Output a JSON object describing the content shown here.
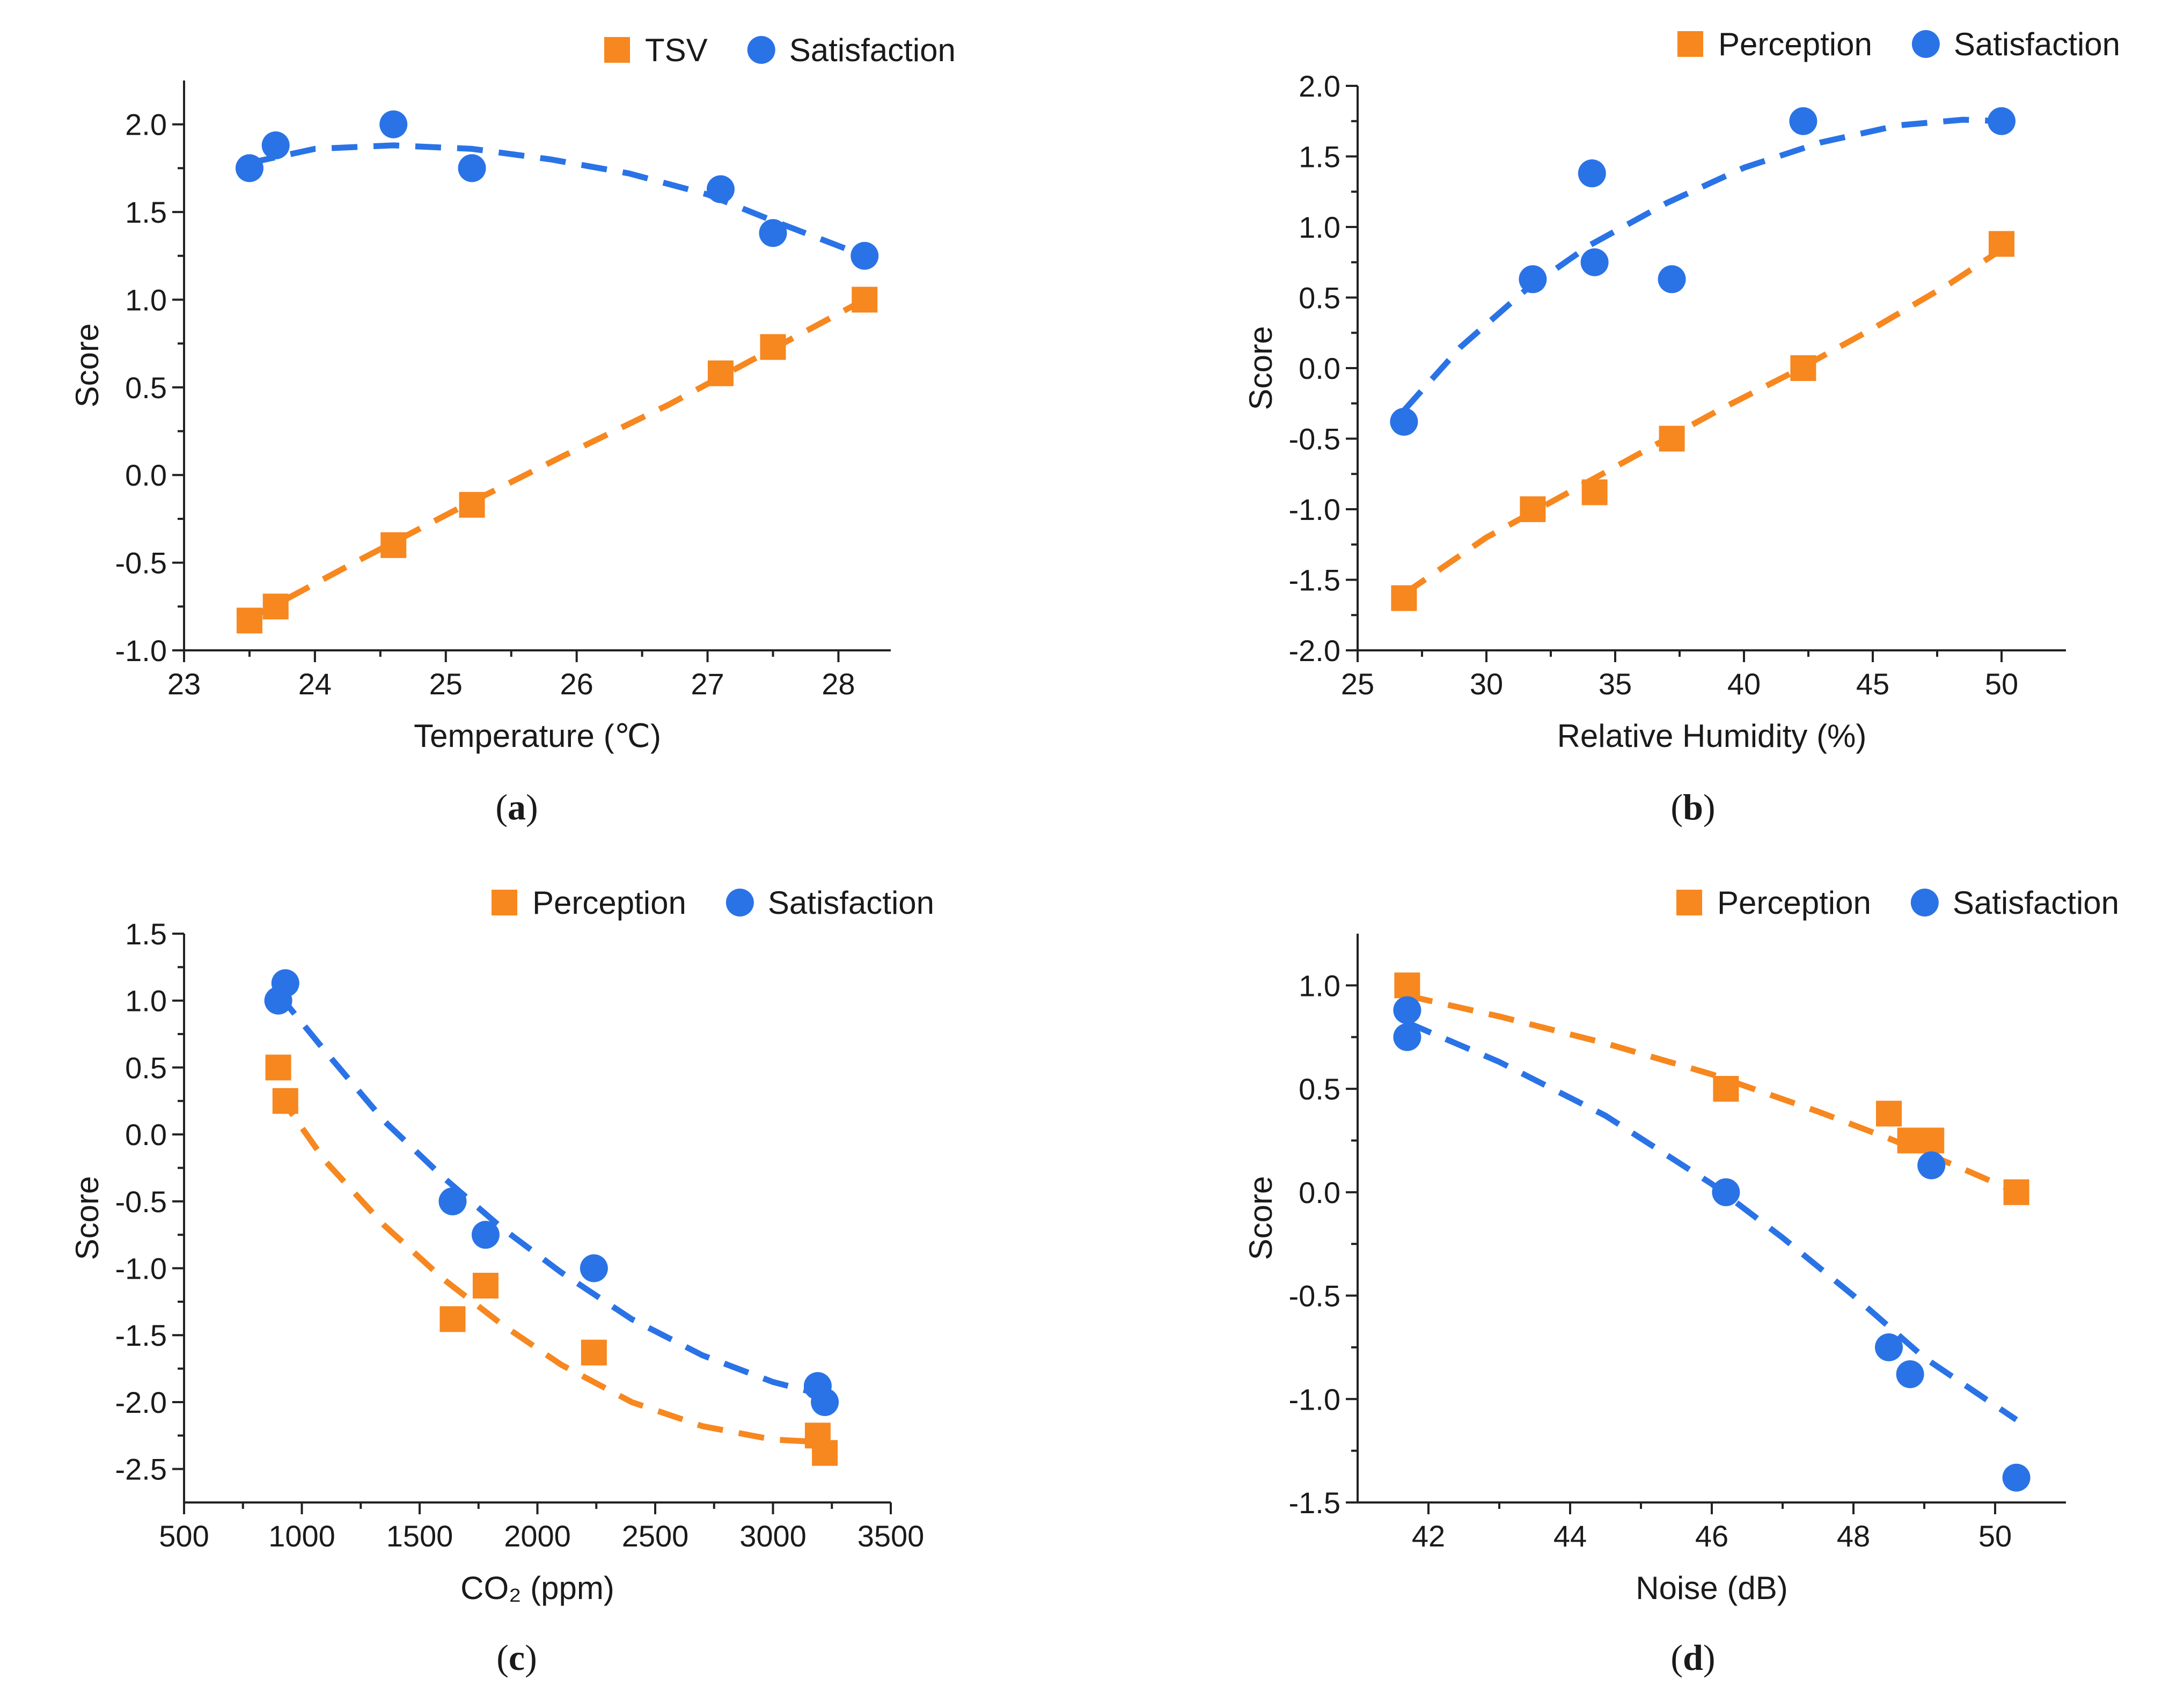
{
  "colors": {
    "perception": "#F7871F",
    "satisfaction": "#2A73E6",
    "axis": "#222222"
  },
  "chart_data": [
    {
      "id": "a",
      "type": "scatter",
      "caption": "a",
      "xlabel": "Temperature (℃)",
      "ylabel": "Score",
      "xlim": [
        23,
        28.4
      ],
      "ylim": [
        -1.0,
        2.25
      ],
      "xticks": [
        23,
        24,
        25,
        26,
        27,
        28
      ],
      "yticks": [
        -1.0,
        -0.5,
        0.0,
        0.5,
        1.0,
        1.5,
        2.0
      ],
      "ytick_labels": [
        "-1.0",
        "-0.5",
        "0.0",
        "0.5",
        "1.0",
        "1.5",
        "2.0"
      ],
      "series": [
        {
          "name": "TSV",
          "marker": "square",
          "color": "#F7871F",
          "x": [
            23.5,
            23.7,
            24.6,
            25.2,
            27.1,
            27.5,
            28.2
          ],
          "y": [
            -0.83,
            -0.75,
            -0.4,
            -0.17,
            0.58,
            0.73,
            1.0
          ],
          "fit": {
            "x": [
              23.5,
              24.3,
              25.1,
              25.9,
              26.7,
              27.5,
              28.2
            ],
            "y": [
              -0.82,
              -0.5,
              -0.19,
              0.11,
              0.4,
              0.72,
              1.0
            ]
          }
        },
        {
          "name": "Satisfaction",
          "marker": "circle",
          "color": "#2A73E6",
          "x": [
            23.5,
            23.7,
            24.6,
            25.2,
            27.1,
            27.5,
            28.2
          ],
          "y": [
            1.75,
            1.88,
            2.0,
            1.75,
            1.63,
            1.38,
            1.25
          ],
          "fit": {
            "x": [
              23.5,
              24.0,
              24.6,
              25.2,
              25.8,
              26.4,
              27.0,
              27.5,
              28.2
            ],
            "y": [
              1.78,
              1.86,
              1.88,
              1.86,
              1.8,
              1.72,
              1.6,
              1.45,
              1.25
            ]
          }
        }
      ]
    },
    {
      "id": "b",
      "type": "scatter",
      "caption": "b",
      "xlabel": "Relative Humidity (%)",
      "ylabel": "Score",
      "xlim": [
        25,
        52.5
      ],
      "ylim": [
        -2.0,
        2.0
      ],
      "xticks": [
        25,
        30,
        35,
        40,
        45,
        50
      ],
      "yticks": [
        -2.0,
        -1.5,
        -1.0,
        -0.5,
        0.0,
        0.5,
        1.0,
        1.5,
        2.0
      ],
      "ytick_labels": [
        "-2.0",
        "-1.5",
        "-1.0",
        "-0.5",
        "0.0",
        "0.5",
        "1.0",
        "1.5",
        "2.0"
      ],
      "series": [
        {
          "name": "Perception",
          "marker": "square",
          "color": "#F7871F",
          "x": [
            26.8,
            31.8,
            34.2,
            37.2,
            42.3,
            50.0
          ],
          "y": [
            -1.63,
            -1.0,
            -0.88,
            -0.5,
            0.0,
            0.88
          ],
          "fit": {
            "x": [
              26.8,
              30.0,
              33.0,
              36.0,
              39.0,
              42.0,
              45.0,
              48.0,
              50.0
            ],
            "y": [
              -1.6,
              -1.2,
              -0.9,
              -0.6,
              -0.3,
              -0.02,
              0.28,
              0.6,
              0.84
            ]
          }
        },
        {
          "name": "Satisfaction",
          "marker": "circle",
          "color": "#2A73E6",
          "x": [
            26.8,
            31.8,
            34.1,
            34.2,
            37.2,
            42.3,
            50.0
          ],
          "y": [
            -0.38,
            0.63,
            1.38,
            0.75,
            0.63,
            1.75,
            1.75
          ],
          "fit": {
            "x": [
              26.8,
              29.0,
              31.5,
              34.0,
              37.0,
              40.0,
              43.0,
              46.0,
              48.5,
              50.0
            ],
            "y": [
              -0.3,
              0.15,
              0.55,
              0.87,
              1.17,
              1.42,
              1.6,
              1.72,
              1.76,
              1.75
            ]
          }
        }
      ]
    },
    {
      "id": "c",
      "type": "scatter",
      "caption": "c",
      "xlabel": "CO₂ (ppm)",
      "ylabel": "Score",
      "xlim": [
        500,
        3500
      ],
      "ylim": [
        -2.75,
        1.5
      ],
      "xticks": [
        500,
        1000,
        1500,
        2000,
        2500,
        3000,
        3500
      ],
      "yticks": [
        -2.5,
        -2.0,
        -1.5,
        -1.0,
        -0.5,
        0.0,
        0.5,
        1.0,
        1.5
      ],
      "ytick_labels": [
        "-2.5",
        "-2.0",
        "-1.5",
        "-1.0",
        "-0.5",
        "0.0",
        "0.5",
        "1.0",
        "1.5"
      ],
      "series": [
        {
          "name": "Perception",
          "marker": "square",
          "color": "#F7871F",
          "x": [
            900,
            930,
            1640,
            1780,
            2240,
            3190,
            3220
          ],
          "y": [
            0.5,
            0.25,
            -1.38,
            -1.13,
            -1.63,
            -2.25,
            -2.38
          ],
          "fit": {
            "x": [
              900,
              1100,
              1350,
              1600,
              1850,
              2100,
              2400,
              2700,
              3000,
              3220
            ],
            "y": [
              0.3,
              -0.2,
              -0.68,
              -1.08,
              -1.42,
              -1.72,
              -2.0,
              -2.18,
              -2.28,
              -2.3
            ]
          }
        },
        {
          "name": "Satisfaction",
          "marker": "circle",
          "color": "#2A73E6",
          "x": [
            900,
            930,
            1640,
            1780,
            2240,
            3190,
            3220
          ],
          "y": [
            1.0,
            1.13,
            -0.5,
            -0.75,
            -1.0,
            -1.88,
            -2.0
          ],
          "fit": {
            "x": [
              900,
              1100,
              1350,
              1600,
              1850,
              2100,
              2400,
              2700,
              3000,
              3220
            ],
            "y": [
              1.05,
              0.62,
              0.1,
              -0.32,
              -0.7,
              -1.03,
              -1.38,
              -1.65,
              -1.85,
              -1.95
            ]
          }
        }
      ]
    },
    {
      "id": "d",
      "type": "scatter",
      "caption": "d",
      "xlabel": "Noise (dB)",
      "ylabel": "Score",
      "xlim": [
        41,
        51
      ],
      "ylim": [
        -1.5,
        1.25
      ],
      "xticks": [
        42,
        44,
        46,
        48,
        50
      ],
      "yticks": [
        -1.5,
        -1.0,
        -0.5,
        0.0,
        0.5,
        1.0
      ],
      "ytick_labels": [
        "-1.5",
        "-1.0",
        "-0.5",
        "0.0",
        "0.5",
        "1.0"
      ],
      "series": [
        {
          "name": "Perception",
          "marker": "square",
          "color": "#F7871F",
          "x": [
            41.7,
            46.2,
            48.5,
            48.8,
            49.1,
            50.3
          ],
          "y": [
            1.0,
            0.5,
            0.38,
            0.25,
            0.25,
            0.0
          ],
          "fit": {
            "x": [
              41.7,
              43.0,
              44.5,
              46.0,
              47.5,
              48.5,
              49.5,
              50.3
            ],
            "y": [
              0.95,
              0.85,
              0.72,
              0.57,
              0.39,
              0.26,
              0.12,
              0.0
            ]
          }
        },
        {
          "name": "Satisfaction",
          "marker": "circle",
          "color": "#2A73E6",
          "x": [
            41.7,
            41.7,
            46.2,
            48.5,
            48.8,
            49.1,
            50.3
          ],
          "y": [
            0.88,
            0.75,
            0.0,
            -0.75,
            -0.88,
            0.13,
            -1.38
          ],
          "fit": {
            "x": [
              41.7,
              43.0,
              44.5,
              46.0,
              47.0,
              48.0,
              49.0,
              50.3
            ],
            "y": [
              0.82,
              0.63,
              0.37,
              0.04,
              -0.22,
              -0.5,
              -0.8,
              -1.1
            ]
          }
        }
      ]
    }
  ]
}
